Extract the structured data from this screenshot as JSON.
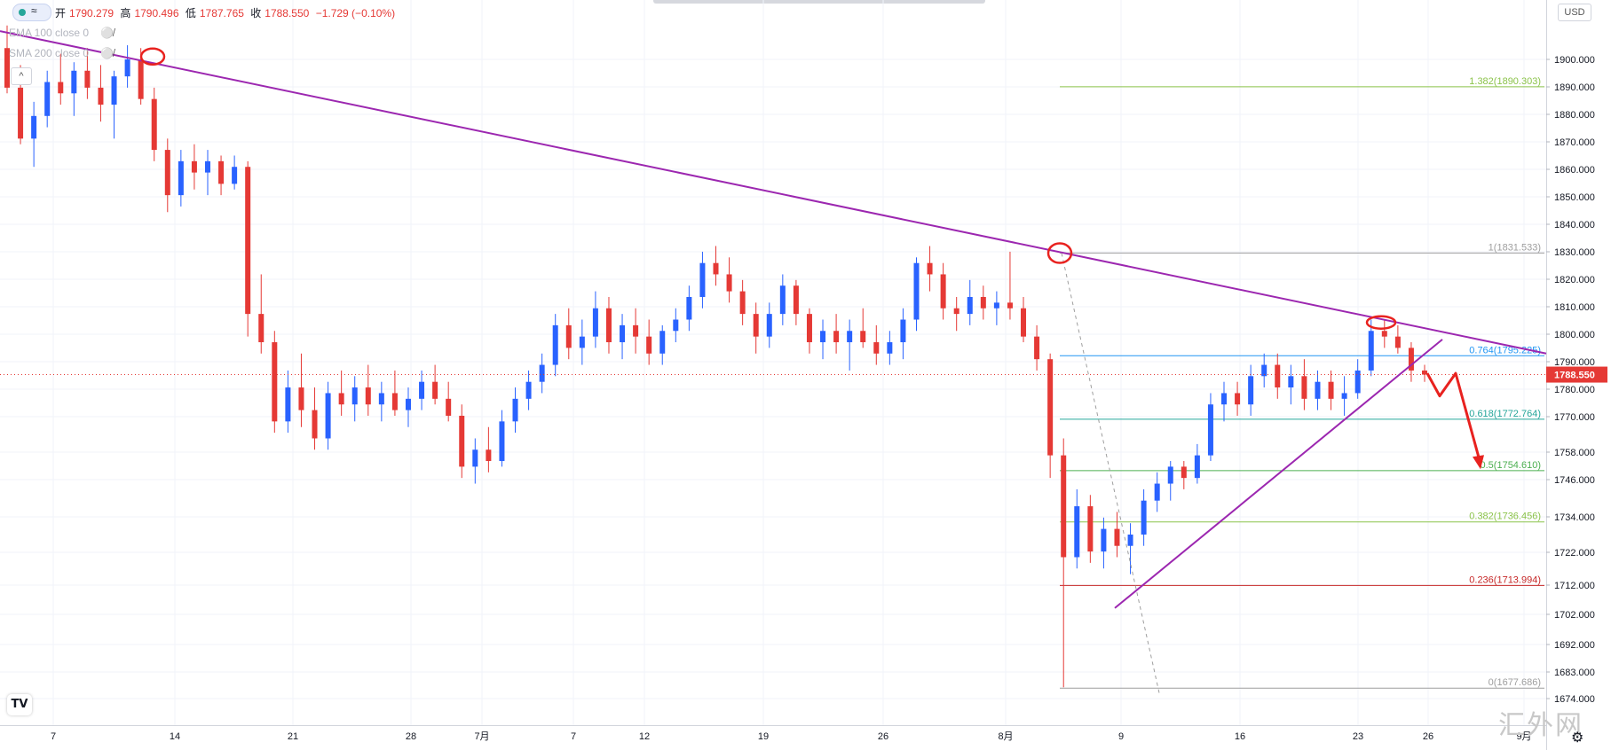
{
  "header": {
    "logo_glyph": "≈",
    "ohlc": {
      "open_label": "开",
      "open": "1790.279",
      "high_label": "高",
      "high": "1790.496",
      "low_label": "低",
      "low": "1787.765",
      "close_label": "收",
      "close": "1788.550",
      "change": "−1.729 (−0.10%)"
    },
    "legend": [
      "EMA 100 close 0",
      "SMA 200 close 0"
    ],
    "collapse_glyph": "^",
    "currency": "USD",
    "tv_logo": "TV"
  },
  "watermark": "汇外网",
  "colors": {
    "up": "#2962ff",
    "down": "#e53935",
    "trendline": "#9c27b0",
    "annotation": "#e8221f",
    "price_badge": "#e53935"
  },
  "chart_data": {
    "type": "candlestick",
    "y_ticks": [
      "1900.000",
      "1890.000",
      "1880.000",
      "1870.000",
      "1860.000",
      "1850.000",
      "1840.000",
      "1830.000",
      "1820.000",
      "1810.000",
      "1800.000",
      "1790.000",
      "1780.000",
      "1770.000",
      "1758.000",
      "1746.000",
      "1734.000",
      "1722.000",
      "1712.000",
      "1702.000",
      "1692.000",
      "1683.000",
      "1674.000"
    ],
    "x_ticks": [
      "7",
      "14",
      "21",
      "28",
      "7月",
      "7",
      "12",
      "19",
      "26",
      "8月",
      "9",
      "16",
      "23",
      "26",
      "9月"
    ],
    "last_price": "1788.550",
    "fib_levels": [
      {
        "label": "1.382(1890.303)",
        "value": 1890.303,
        "color": "#8bc34a"
      },
      {
        "label": "1(1831.533)",
        "value": 1831.533,
        "color": "#9e9e9e"
      },
      {
        "label": "0.764(1795.225)",
        "value": 1795.225,
        "color": "#2196f3"
      },
      {
        "label": "0.618(1772.764)",
        "value": 1772.764,
        "color": "#26a69a"
      },
      {
        "label": "0.5(1754.610)",
        "value": 1754.61,
        "color": "#4caf50"
      },
      {
        "label": "0.382(1736.456)",
        "value": 1736.456,
        "color": "#8bc34a"
      },
      {
        "label": "0.236(1713.994)",
        "value": 1713.994,
        "color": "#c62828"
      },
      {
        "label": "0(1677.686)",
        "value": 1677.686,
        "color": "#9e9e9e"
      }
    ],
    "candles": [
      {
        "o": 1904,
        "h": 1912,
        "l": 1888,
        "c": 1890
      },
      {
        "o": 1890,
        "h": 1898,
        "l": 1870,
        "c": 1872
      },
      {
        "o": 1872,
        "h": 1885,
        "l": 1862,
        "c": 1880
      },
      {
        "o": 1880,
        "h": 1896,
        "l": 1876,
        "c": 1892
      },
      {
        "o": 1892,
        "h": 1902,
        "l": 1884,
        "c": 1888
      },
      {
        "o": 1888,
        "h": 1899,
        "l": 1880,
        "c": 1896
      },
      {
        "o": 1896,
        "h": 1904,
        "l": 1886,
        "c": 1890
      },
      {
        "o": 1890,
        "h": 1898,
        "l": 1878,
        "c": 1884
      },
      {
        "o": 1884,
        "h": 1896,
        "l": 1872,
        "c": 1894
      },
      {
        "o": 1894,
        "h": 1905,
        "l": 1890,
        "c": 1900
      },
      {
        "o": 1900,
        "h": 1904,
        "l": 1884,
        "c": 1886
      },
      {
        "o": 1886,
        "h": 1890,
        "l": 1864,
        "c": 1868
      },
      {
        "o": 1868,
        "h": 1872,
        "l": 1846,
        "c": 1852
      },
      {
        "o": 1852,
        "h": 1868,
        "l": 1848,
        "c": 1864
      },
      {
        "o": 1864,
        "h": 1870,
        "l": 1854,
        "c": 1860
      },
      {
        "o": 1860,
        "h": 1868,
        "l": 1852,
        "c": 1864
      },
      {
        "o": 1864,
        "h": 1866,
        "l": 1852,
        "c": 1856
      },
      {
        "o": 1856,
        "h": 1866,
        "l": 1854,
        "c": 1862
      },
      {
        "o": 1862,
        "h": 1864,
        "l": 1802,
        "c": 1810
      },
      {
        "o": 1810,
        "h": 1824,
        "l": 1796,
        "c": 1800
      },
      {
        "o": 1800,
        "h": 1804,
        "l": 1768,
        "c": 1772
      },
      {
        "o": 1772,
        "h": 1790,
        "l": 1768,
        "c": 1784
      },
      {
        "o": 1784,
        "h": 1796,
        "l": 1770,
        "c": 1776
      },
      {
        "o": 1776,
        "h": 1784,
        "l": 1762,
        "c": 1766
      },
      {
        "o": 1766,
        "h": 1786,
        "l": 1762,
        "c": 1782
      },
      {
        "o": 1782,
        "h": 1790,
        "l": 1774,
        "c": 1778
      },
      {
        "o": 1778,
        "h": 1788,
        "l": 1772,
        "c": 1784
      },
      {
        "o": 1784,
        "h": 1792,
        "l": 1774,
        "c": 1778
      },
      {
        "o": 1778,
        "h": 1786,
        "l": 1772,
        "c": 1782
      },
      {
        "o": 1782,
        "h": 1790,
        "l": 1774,
        "c": 1776
      },
      {
        "o": 1776,
        "h": 1784,
        "l": 1770,
        "c": 1780
      },
      {
        "o": 1780,
        "h": 1790,
        "l": 1776,
        "c": 1786
      },
      {
        "o": 1786,
        "h": 1792,
        "l": 1778,
        "c": 1780
      },
      {
        "o": 1780,
        "h": 1786,
        "l": 1772,
        "c": 1774
      },
      {
        "o": 1774,
        "h": 1778,
        "l": 1752,
        "c": 1756
      },
      {
        "o": 1756,
        "h": 1766,
        "l": 1750,
        "c": 1762
      },
      {
        "o": 1762,
        "h": 1770,
        "l": 1754,
        "c": 1758
      },
      {
        "o": 1758,
        "h": 1776,
        "l": 1756,
        "c": 1772
      },
      {
        "o": 1772,
        "h": 1784,
        "l": 1768,
        "c": 1780
      },
      {
        "o": 1780,
        "h": 1790,
        "l": 1776,
        "c": 1786
      },
      {
        "o": 1786,
        "h": 1796,
        "l": 1782,
        "c": 1792
      },
      {
        "o": 1792,
        "h": 1810,
        "l": 1788,
        "c": 1806
      },
      {
        "o": 1806,
        "h": 1812,
        "l": 1794,
        "c": 1798
      },
      {
        "o": 1798,
        "h": 1808,
        "l": 1792,
        "c": 1802
      },
      {
        "o": 1802,
        "h": 1818,
        "l": 1798,
        "c": 1812
      },
      {
        "o": 1812,
        "h": 1816,
        "l": 1796,
        "c": 1800
      },
      {
        "o": 1800,
        "h": 1810,
        "l": 1794,
        "c": 1806
      },
      {
        "o": 1806,
        "h": 1812,
        "l": 1796,
        "c": 1802
      },
      {
        "o": 1802,
        "h": 1808,
        "l": 1792,
        "c": 1796
      },
      {
        "o": 1796,
        "h": 1806,
        "l": 1792,
        "c": 1804
      },
      {
        "o": 1804,
        "h": 1812,
        "l": 1800,
        "c": 1808
      },
      {
        "o": 1808,
        "h": 1820,
        "l": 1804,
        "c": 1816
      },
      {
        "o": 1816,
        "h": 1832,
        "l": 1812,
        "c": 1828
      },
      {
        "o": 1828,
        "h": 1834,
        "l": 1820,
        "c": 1824
      },
      {
        "o": 1824,
        "h": 1830,
        "l": 1814,
        "c": 1818
      },
      {
        "o": 1818,
        "h": 1822,
        "l": 1806,
        "c": 1810
      },
      {
        "o": 1810,
        "h": 1814,
        "l": 1796,
        "c": 1802
      },
      {
        "o": 1802,
        "h": 1814,
        "l": 1798,
        "c": 1810
      },
      {
        "o": 1810,
        "h": 1824,
        "l": 1806,
        "c": 1820
      },
      {
        "o": 1820,
        "h": 1822,
        "l": 1806,
        "c": 1810
      },
      {
        "o": 1810,
        "h": 1812,
        "l": 1796,
        "c": 1800
      },
      {
        "o": 1800,
        "h": 1808,
        "l": 1794,
        "c": 1804
      },
      {
        "o": 1804,
        "h": 1810,
        "l": 1796,
        "c": 1800
      },
      {
        "o": 1800,
        "h": 1808,
        "l": 1790,
        "c": 1804
      },
      {
        "o": 1804,
        "h": 1812,
        "l": 1798,
        "c": 1800
      },
      {
        "o": 1800,
        "h": 1806,
        "l": 1792,
        "c": 1796
      },
      {
        "o": 1796,
        "h": 1804,
        "l": 1792,
        "c": 1800
      },
      {
        "o": 1800,
        "h": 1812,
        "l": 1794,
        "c": 1808
      },
      {
        "o": 1808,
        "h": 1830,
        "l": 1804,
        "c": 1828
      },
      {
        "o": 1828,
        "h": 1834,
        "l": 1818,
        "c": 1824
      },
      {
        "o": 1824,
        "h": 1828,
        "l": 1808,
        "c": 1812
      },
      {
        "o": 1812,
        "h": 1816,
        "l": 1804,
        "c": 1810
      },
      {
        "o": 1810,
        "h": 1822,
        "l": 1806,
        "c": 1816
      },
      {
        "o": 1816,
        "h": 1820,
        "l": 1808,
        "c": 1812
      },
      {
        "o": 1812,
        "h": 1818,
        "l": 1806,
        "c": 1814
      },
      {
        "o": 1814,
        "h": 1832,
        "l": 1808,
        "c": 1812
      },
      {
        "o": 1812,
        "h": 1816,
        "l": 1800,
        "c": 1802
      },
      {
        "o": 1802,
        "h": 1806,
        "l": 1790,
        "c": 1794
      },
      {
        "o": 1794,
        "h": 1796,
        "l": 1752,
        "c": 1760
      },
      {
        "o": 1760,
        "h": 1766,
        "l": 1678,
        "c": 1724
      },
      {
        "o": 1724,
        "h": 1748,
        "l": 1720,
        "c": 1742
      },
      {
        "o": 1742,
        "h": 1746,
        "l": 1722,
        "c": 1726
      },
      {
        "o": 1726,
        "h": 1738,
        "l": 1720,
        "c": 1734
      },
      {
        "o": 1734,
        "h": 1740,
        "l": 1724,
        "c": 1728
      },
      {
        "o": 1728,
        "h": 1736,
        "l": 1718,
        "c": 1732
      },
      {
        "o": 1732,
        "h": 1748,
        "l": 1728,
        "c": 1744
      },
      {
        "o": 1744,
        "h": 1754,
        "l": 1740,
        "c": 1750
      },
      {
        "o": 1750,
        "h": 1758,
        "l": 1744,
        "c": 1756
      },
      {
        "o": 1756,
        "h": 1758,
        "l": 1748,
        "c": 1752
      },
      {
        "o": 1752,
        "h": 1764,
        "l": 1750,
        "c": 1760
      },
      {
        "o": 1760,
        "h": 1782,
        "l": 1758,
        "c": 1778
      },
      {
        "o": 1778,
        "h": 1786,
        "l": 1772,
        "c": 1782
      },
      {
        "o": 1782,
        "h": 1786,
        "l": 1774,
        "c": 1778
      },
      {
        "o": 1778,
        "h": 1792,
        "l": 1774,
        "c": 1788
      },
      {
        "o": 1788,
        "h": 1796,
        "l": 1784,
        "c": 1792
      },
      {
        "o": 1792,
        "h": 1796,
        "l": 1780,
        "c": 1784
      },
      {
        "o": 1784,
        "h": 1792,
        "l": 1778,
        "c": 1788
      },
      {
        "o": 1788,
        "h": 1794,
        "l": 1776,
        "c": 1780
      },
      {
        "o": 1780,
        "h": 1790,
        "l": 1776,
        "c": 1786
      },
      {
        "o": 1786,
        "h": 1790,
        "l": 1776,
        "c": 1780
      },
      {
        "o": 1780,
        "h": 1788,
        "l": 1774,
        "c": 1782
      },
      {
        "o": 1782,
        "h": 1794,
        "l": 1780,
        "c": 1790
      },
      {
        "o": 1790,
        "h": 1808,
        "l": 1788,
        "c": 1804
      },
      {
        "o": 1804,
        "h": 1808,
        "l": 1798,
        "c": 1802
      },
      {
        "o": 1802,
        "h": 1806,
        "l": 1796,
        "c": 1798
      },
      {
        "o": 1798,
        "h": 1800,
        "l": 1786,
        "c": 1790
      },
      {
        "o": 1790,
        "h": 1792,
        "l": 1786,
        "c": 1788.55
      }
    ],
    "arrow_path": [
      [
        1786,
        1789
      ],
      [
        1773,
        1781
      ],
      [
        1790,
        1789
      ],
      [
        1754,
        1757
      ]
    ],
    "circled_highs": [
      1901,
      1831.5,
      1807
    ]
  }
}
